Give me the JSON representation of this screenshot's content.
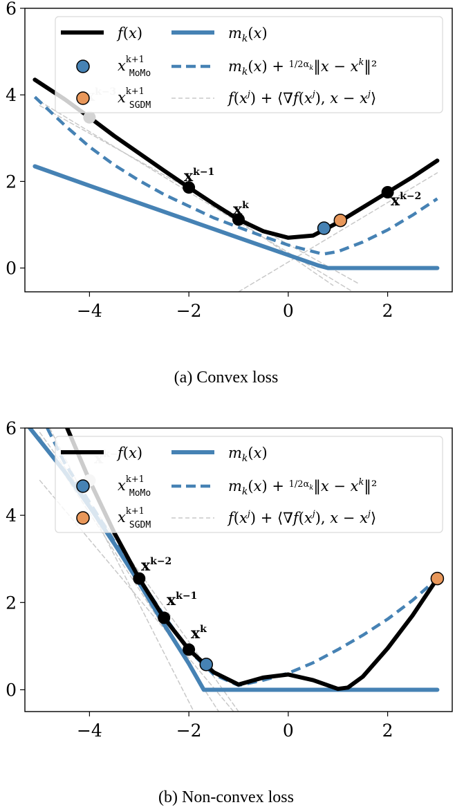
{
  "chart_data": [
    {
      "type": "line",
      "caption": "(a) Convex loss",
      "xlim": [
        -5.3,
        3.3
      ],
      "ylim": [
        -0.55,
        6.0
      ],
      "xticks": [
        "−4",
        "−2",
        "0",
        "2"
      ],
      "yticks": [
        "0",
        "2",
        "4",
        "6"
      ],
      "legend": {
        "placement": "top",
        "entries": [
          "f(x)",
          "x^{k+1}_MoMo",
          "x^{k+1}_SGDM",
          "m_k(x)",
          "m_k(x) + 1/(2α_k) ‖x − x^k‖²",
          "f(x^j) + ⟨∇f(x^j), x − x^j⟩"
        ]
      },
      "series": [
        {
          "name": "f(x)",
          "style": "solid",
          "color": "#000000",
          "x": [
            -5.1,
            -4.5,
            -4.0,
            -3.5,
            -3.0,
            -2.5,
            -2.0,
            -1.5,
            -1.0,
            -0.5,
            0.0,
            0.5,
            1.0,
            1.5,
            2.0,
            2.5,
            3.0
          ],
          "y": [
            4.35,
            3.9,
            3.48,
            3.05,
            2.65,
            2.25,
            1.86,
            1.48,
            1.12,
            0.85,
            0.7,
            0.75,
            1.05,
            1.4,
            1.75,
            2.1,
            2.48
          ]
        },
        {
          "name": "m_k(x)",
          "style": "solid",
          "color": "#4682b4",
          "x": [
            -5.1,
            -4.0,
            -3.0,
            -2.0,
            -1.0,
            0.0,
            0.6,
            0.8,
            3.0
          ],
          "y": [
            2.35,
            1.9,
            1.5,
            1.1,
            0.7,
            0.3,
            0.06,
            0.0,
            0.0
          ]
        },
        {
          "name": "m_k(x) + 1/(2α_k) ‖x − x^k‖²",
          "style": "dashed",
          "color": "#4682b4",
          "x": [
            -5.1,
            -4.5,
            -4.0,
            -3.5,
            -3.0,
            -2.5,
            -2.0,
            -1.5,
            -1.0,
            -0.5,
            0.0,
            0.5,
            0.7,
            1.0,
            1.5,
            2.0,
            2.5,
            3.0
          ],
          "y": [
            3.95,
            3.3,
            2.8,
            2.38,
            2.02,
            1.7,
            1.43,
            1.16,
            0.94,
            0.73,
            0.53,
            0.38,
            0.32,
            0.38,
            0.6,
            0.88,
            1.22,
            1.6
          ]
        },
        {
          "name": "f(x^j) + ⟨∇f(x^j), x − x^j⟩ (j = k)",
          "style": "thin-dashed",
          "color": "#c8c8c8",
          "x": [
            -5.0,
            1.4
          ],
          "y": [
            3.75,
            -0.35
          ]
        },
        {
          "name": "f(x^j) + ⟨∇f(x^j), x − x^j⟩ (j = k−1)",
          "style": "thin-dashed",
          "color": "#c8c8c8",
          "x": [
            -5.0,
            1.3
          ],
          "y": [
            3.85,
            -0.55
          ]
        },
        {
          "name": "f(x^j) + ⟨∇f(x^j), x − x^j⟩ (j = k−2)",
          "style": "thin-dashed",
          "color": "#c8c8c8",
          "x": [
            -1.0,
            3.0
          ],
          "y": [
            -0.55,
            2.2
          ]
        },
        {
          "name": "f(x^j) + ⟨∇f(x^j), x − x^j⟩ (j = k−3)",
          "style": "thin-dashed",
          "color": "#c8c8c8",
          "x": [
            -5.0,
            0.9
          ],
          "y": [
            4.25,
            -0.4
          ]
        }
      ],
      "points": [
        {
          "label": "x^{k−3}",
          "x": -4.0,
          "y": 3.48,
          "color": "#000000",
          "faded": true
        },
        {
          "label": "x^{k−1}",
          "x": -2.0,
          "y": 1.86,
          "color": "#000000"
        },
        {
          "label": "x^{k}",
          "x": -1.0,
          "y": 1.12,
          "color": "#000000"
        },
        {
          "label": "x^{k−2}",
          "x": 2.0,
          "y": 1.75,
          "color": "#000000"
        },
        {
          "label": "x^{k+1}_MoMo",
          "x": 0.72,
          "y": 0.92,
          "color": "#4682b4"
        },
        {
          "label": "x^{k+1}_SGDM",
          "x": 1.05,
          "y": 1.1,
          "color": "#e8975a"
        }
      ]
    },
    {
      "type": "line",
      "caption": "(b) Non-convex loss",
      "xlim": [
        -5.3,
        3.3
      ],
      "ylim": [
        -0.5,
        6.0
      ],
      "xticks": [
        "−4",
        "−2",
        "0",
        "2"
      ],
      "yticks": [
        "0",
        "2",
        "4",
        "6"
      ],
      "legend": {
        "placement": "top",
        "entries": [
          "f(x)",
          "x^{k+1}_MoMo",
          "x^{k+1}_SGDM",
          "m_k(x)",
          "m_k(x) + 1/(2α_k) ‖x − x^k‖²",
          "f(x^j) + ⟨∇f(x^j), x − x^j⟩"
        ]
      },
      "series": [
        {
          "name": "f(x)",
          "style": "solid",
          "color": "#000000",
          "x": [
            -4.45,
            -4.0,
            -3.5,
            -3.0,
            -2.5,
            -2.0,
            -1.5,
            -1.0,
            -0.5,
            0.0,
            0.5,
            1.0,
            1.2,
            1.5,
            2.0,
            2.5,
            3.0
          ],
          "y": [
            6.0,
            4.8,
            3.6,
            2.55,
            1.65,
            0.92,
            0.4,
            0.12,
            0.28,
            0.35,
            0.22,
            0.02,
            0.05,
            0.3,
            0.95,
            1.7,
            2.55
          ]
        },
        {
          "name": "m_k(x)",
          "style": "solid",
          "color": "#4682b4",
          "x": [
            -5.2,
            -4.5,
            -4.0,
            -3.5,
            -3.0,
            -2.5,
            -2.0,
            -1.7,
            3.0
          ],
          "y": [
            6.0,
            5.0,
            4.2,
            3.35,
            2.45,
            1.5,
            0.6,
            0.0,
            0.0
          ]
        },
        {
          "name": "m_k(x) + 1/(2α_k) ‖x − x^k‖²",
          "style": "dashed",
          "color": "#4682b4",
          "x": [
            -4.85,
            -4.5,
            -4.0,
            -3.5,
            -3.0,
            -2.5,
            -2.0,
            -1.5,
            -1.0,
            -0.5,
            0.0,
            0.5,
            1.0,
            1.5,
            2.0,
            2.5,
            3.0
          ],
          "y": [
            6.0,
            5.2,
            4.3,
            3.4,
            2.55,
            1.7,
            0.9,
            0.35,
            0.1,
            0.22,
            0.38,
            0.62,
            0.92,
            1.25,
            1.62,
            2.05,
            2.55
          ]
        },
        {
          "name": "f(x^j) + ⟨∇f(x^j), x − x^j⟩ (j = k)",
          "style": "thin-dashed",
          "color": "#c8c8c8",
          "x": [
            -5.0,
            -1.1
          ],
          "y": [
            4.8,
            -0.5
          ]
        },
        {
          "name": "f(x^j) + ⟨∇f(x^j), x − x^j⟩ (j = k−1)",
          "style": "thin-dashed",
          "color": "#c8c8c8",
          "x": [
            -5.0,
            -1.4
          ],
          "y": [
            5.8,
            -0.5
          ]
        },
        {
          "name": "f(x^j) + ⟨∇f(x^j), x − x^j⟩ (j = k−2)",
          "style": "thin-dashed",
          "color": "#c8c8c8",
          "x": [
            -4.8,
            -1.9
          ],
          "y": [
            6.0,
            -0.5
          ]
        },
        {
          "name": "f(x^j) + ⟨∇f(x^j), x − x^j⟩ (j = k−3)",
          "style": "thin-dashed",
          "color": "#c8c8c8",
          "x": [
            -5.0,
            -1.0
          ],
          "y": [
            5.9,
            -0.5
          ]
        }
      ],
      "points": [
        {
          "label": "x^{k−3}",
          "x": -4.0,
          "y": 4.8,
          "color": "#000000",
          "faded": true
        },
        {
          "label": "x^{k−2}",
          "x": -3.0,
          "y": 2.55,
          "color": "#000000"
        },
        {
          "label": "x^{k−1}",
          "x": -2.5,
          "y": 1.65,
          "color": "#000000"
        },
        {
          "label": "x^{k}",
          "x": -2.0,
          "y": 0.92,
          "color": "#000000"
        },
        {
          "label": "x^{k+1}_MoMo",
          "x": -1.65,
          "y": 0.58,
          "color": "#4682b4"
        },
        {
          "label": "x^{k+1}_SGDM",
          "x": 3.0,
          "y": 2.55,
          "color": "#e8975a"
        }
      ]
    }
  ],
  "colors": {
    "f": "#000000",
    "model": "#4682b4",
    "sgdm": "#e8975a",
    "tangent": "#c8c8c8"
  }
}
